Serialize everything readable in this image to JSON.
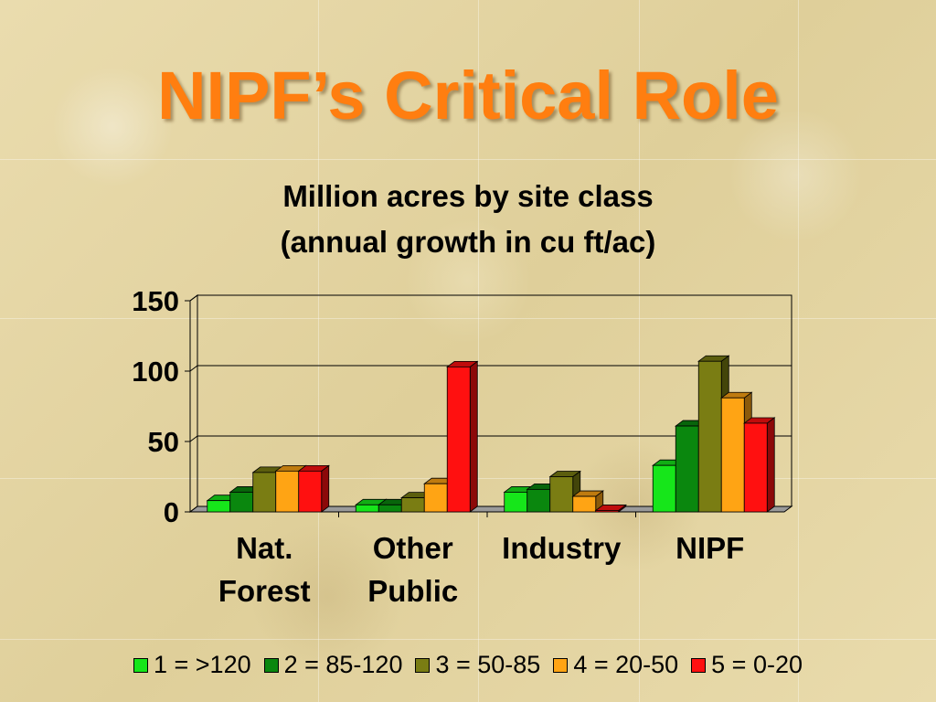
{
  "slide": {
    "title": "NIPF’s Critical Role"
  },
  "chart_data": {
    "type": "bar",
    "title": "Million acres by site class",
    "subtitle": "(annual growth in cu ft/ac)",
    "categories": [
      [
        "Nat.",
        "Forest"
      ],
      [
        "Other",
        "Public"
      ],
      [
        "Industry"
      ],
      [
        "NIPF"
      ]
    ],
    "series": [
      {
        "name": "1 = >120",
        "color": "#16e61a",
        "values": [
          8,
          5,
          14,
          33
        ]
      },
      {
        "name": "2 = 85-120",
        "color": "#0a870e",
        "values": [
          14,
          5,
          16,
          61
        ]
      },
      {
        "name": "3 = 50-85",
        "color": "#7a7d13",
        "values": [
          28,
          10,
          25,
          107
        ]
      },
      {
        "name": "4 = 20-50",
        "color": "#ffa414",
        "values": [
          29,
          20,
          11,
          81
        ]
      },
      {
        "name": "5 = 0-20",
        "color": "#ff1010",
        "values": [
          29,
          103,
          1,
          63
        ]
      }
    ],
    "y_ticks": [
      "0",
      "50",
      "100",
      "150"
    ],
    "ylim": [
      0,
      150
    ],
    "grid": true,
    "legend_position": "bottom",
    "chart_style": "3d-clustered-bar"
  }
}
